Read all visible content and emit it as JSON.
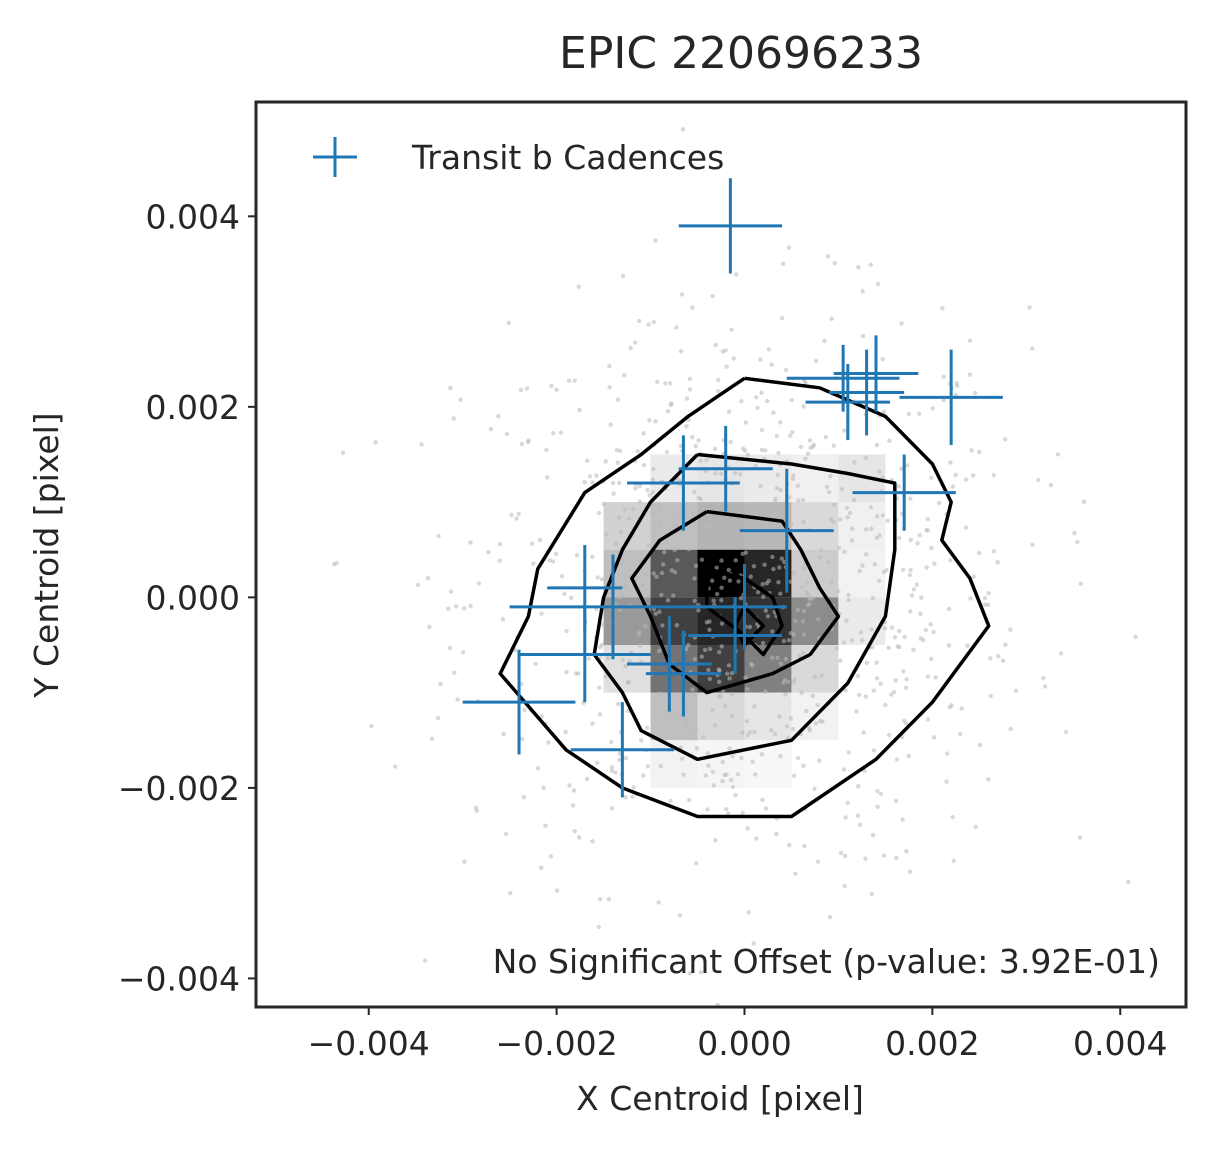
{
  "chart_data": {
    "type": "scatter",
    "title": "EPIC 220696233",
    "xlabel": "X Centroid [pixel]",
    "ylabel": "Y Centroid [pixel]",
    "xlim": [
      -0.0052,
      0.0047
    ],
    "ylim": [
      -0.0043,
      0.0052
    ],
    "xticks": [
      -0.004,
      -0.002,
      0.0,
      0.002,
      0.004
    ],
    "yticks": [
      -0.004,
      -0.002,
      0.0,
      0.002,
      0.004
    ],
    "xtick_labels": [
      "−0.004",
      "−0.002",
      "0.000",
      "0.002",
      "0.004"
    ],
    "ytick_labels": [
      "−0.004",
      "−0.002",
      "0.000",
      "0.002",
      "0.004"
    ],
    "grid": false,
    "legend_position": "top-left",
    "annotation": "No Significant Offset (p-value: 3.92E-01)",
    "colors": {
      "transit": "#1f77b4",
      "background_points": "#b8b8b8",
      "contour": "#000000",
      "axes": "#262626"
    },
    "series": [
      {
        "name": "Transit b Cadences",
        "marker": "errorbar-cross",
        "points": [
          {
            "x": -0.00015,
            "y": 0.0039,
            "xerr": 0.00055,
            "yerr": 0.0005
          },
          {
            "x": 0.00105,
            "y": 0.0023,
            "xerr": 0.0006,
            "yerr": 0.00035
          },
          {
            "x": 0.0014,
            "y": 0.00235,
            "xerr": 0.00045,
            "yerr": 0.0004
          },
          {
            "x": 0.0011,
            "y": 0.00205,
            "xerr": 0.00045,
            "yerr": 0.0004
          },
          {
            "x": 0.0013,
            "y": 0.00215,
            "xerr": 0.0004,
            "yerr": 0.00045
          },
          {
            "x": 0.0022,
            "y": 0.0021,
            "xerr": 0.00055,
            "yerr": 0.0005
          },
          {
            "x": -0.00065,
            "y": 0.0012,
            "xerr": 0.0006,
            "yerr": 0.0005
          },
          {
            "x": -0.0002,
            "y": 0.00135,
            "xerr": 0.0005,
            "yerr": 0.00045
          },
          {
            "x": 0.0017,
            "y": 0.0011,
            "xerr": 0.00055,
            "yerr": 0.0004
          },
          {
            "x": 0.00045,
            "y": 0.0007,
            "xerr": 0.0005,
            "yerr": 0.00065
          },
          {
            "x": -0.0017,
            "y": 0.0001,
            "xerr": 0.0004,
            "yerr": 0.00045
          },
          {
            "x": -0.0014,
            "y": -0.0001,
            "xerr": 0.0011,
            "yerr": 0.00055
          },
          {
            "x": 0.0,
            "y": -0.0001,
            "xerr": 0.00045,
            "yerr": 0.00045
          },
          {
            "x": -0.0017,
            "y": -0.0006,
            "xerr": 0.0007,
            "yerr": 0.0005
          },
          {
            "x": -0.0008,
            "y": -0.0007,
            "xerr": 0.00045,
            "yerr": 0.0005
          },
          {
            "x": -0.0001,
            "y": -0.0004,
            "xerr": 0.0005,
            "yerr": 0.0004
          },
          {
            "x": -0.00065,
            "y": -0.0008,
            "xerr": 0.0004,
            "yerr": 0.00045
          },
          {
            "x": -0.0024,
            "y": -0.0011,
            "xerr": 0.0006,
            "yerr": 0.00055
          },
          {
            "x": -0.0013,
            "y": -0.0016,
            "xerr": 0.00055,
            "yerr": 0.0005
          }
        ]
      }
    ],
    "contours": [
      {
        "level": "outer",
        "points": [
          [
            0.0,
            0.0023
          ],
          [
            0.0008,
            0.0022
          ],
          [
            0.0015,
            0.0019
          ],
          [
            0.002,
            0.0014
          ],
          [
            0.0022,
            0.001
          ],
          [
            0.0021,
            0.0006
          ],
          [
            0.0024,
            0.0002
          ],
          [
            0.0026,
            -0.0003
          ],
          [
            0.002,
            -0.0011
          ],
          [
            0.0014,
            -0.0017
          ],
          [
            0.0005,
            -0.0023
          ],
          [
            0.0,
            -0.0023
          ],
          [
            -0.0005,
            -0.0023
          ],
          [
            -0.0013,
            -0.002
          ],
          [
            -0.0019,
            -0.0016
          ],
          [
            -0.0026,
            -0.0008
          ],
          [
            -0.0023,
            -0.0002
          ],
          [
            -0.0022,
            0.0003
          ],
          [
            -0.0017,
            0.0011
          ],
          [
            -0.0011,
            0.0015
          ],
          [
            -0.0006,
            0.0019
          ],
          [
            -0.0003,
            0.0021
          ],
          [
            0.0,
            0.0023
          ]
        ]
      },
      {
        "level": "middle",
        "points": [
          [
            -0.0005,
            0.0015
          ],
          [
            0.0005,
            0.0014
          ],
          [
            0.0011,
            0.0013
          ],
          [
            0.0016,
            0.0012
          ],
          [
            0.0016,
            0.0005
          ],
          [
            0.0015,
            -0.0002
          ],
          [
            0.0011,
            -0.0009
          ],
          [
            0.0005,
            -0.0015
          ],
          [
            -0.0005,
            -0.0017
          ],
          [
            -0.0011,
            -0.0014
          ],
          [
            -0.0013,
            -0.001
          ],
          [
            -0.0016,
            -0.0006
          ],
          [
            -0.0015,
            0.0
          ],
          [
            -0.0013,
            0.0005
          ],
          [
            -0.001,
            0.001
          ],
          [
            -0.0005,
            0.0015
          ]
        ]
      },
      {
        "level": "inner",
        "points": [
          [
            -0.0004,
            0.0009
          ],
          [
            0.0004,
            0.0008
          ],
          [
            0.0006,
            0.0005
          ],
          [
            0.0008,
            0.0001
          ],
          [
            0.001,
            -0.0002
          ],
          [
            0.0007,
            -0.0006
          ],
          [
            0.0003,
            -0.0008
          ],
          [
            -0.0004,
            -0.001
          ],
          [
            -0.0008,
            -0.0007
          ],
          [
            -0.001,
            -0.0002
          ],
          [
            -0.0012,
            0.0002
          ],
          [
            -0.0009,
            0.0006
          ],
          [
            -0.0004,
            0.0009
          ]
        ]
      },
      {
        "level": "core",
        "points": [
          [
            -0.0004,
            0.0003
          ],
          [
            0.0,
            0.0002
          ],
          [
            0.0003,
            0.0
          ],
          [
            0.0004,
            -0.0003
          ],
          [
            0.0002,
            -0.0006
          ],
          [
            0.0,
            -0.0004
          ],
          [
            -0.0004,
            -0.0001
          ],
          [
            -0.0004,
            0.0003
          ]
        ]
      },
      {
        "level": "peak",
        "points": [
          [
            0.0,
            -0.0001
          ],
          [
            0.0002,
            -0.0003
          ],
          [
            0.0,
            -0.0005
          ],
          [
            -0.0001,
            -0.0003
          ],
          [
            0.0,
            -0.0001
          ]
        ]
      }
    ],
    "density_cells": [
      {
        "x": -0.00075,
        "y": 0.00125,
        "v": 0.08
      },
      {
        "x": -0.00025,
        "y": 0.00125,
        "v": 0.1
      },
      {
        "x": 0.00025,
        "y": 0.00125,
        "v": 0.08
      },
      {
        "x": 0.00075,
        "y": 0.00125,
        "v": 0.06
      },
      {
        "x": 0.00125,
        "y": 0.00125,
        "v": 0.1
      },
      {
        "x": -0.00125,
        "y": 0.00075,
        "v": 0.18
      },
      {
        "x": -0.00075,
        "y": 0.00075,
        "v": 0.25
      },
      {
        "x": -0.00025,
        "y": 0.00075,
        "v": 0.3
      },
      {
        "x": 0.00025,
        "y": 0.00075,
        "v": 0.28
      },
      {
        "x": 0.00075,
        "y": 0.00075,
        "v": 0.15
      },
      {
        "x": 0.00125,
        "y": 0.00075,
        "v": 0.06
      },
      {
        "x": -0.00125,
        "y": 0.00025,
        "v": 0.25
      },
      {
        "x": -0.00075,
        "y": 0.00025,
        "v": 0.65
      },
      {
        "x": -0.00025,
        "y": 0.00025,
        "v": 1.0
      },
      {
        "x": 0.00025,
        "y": 0.00025,
        "v": 0.85
      },
      {
        "x": 0.00075,
        "y": 0.00025,
        "v": 0.2
      },
      {
        "x": 0.00125,
        "y": 0.00025,
        "v": 0.05
      },
      {
        "x": -0.00125,
        "y": -0.00025,
        "v": 0.4
      },
      {
        "x": -0.00075,
        "y": -0.00025,
        "v": 0.75
      },
      {
        "x": -0.00025,
        "y": -0.00025,
        "v": 0.85
      },
      {
        "x": 0.00025,
        "y": -0.00025,
        "v": 0.8
      },
      {
        "x": 0.00075,
        "y": -0.00025,
        "v": 0.45
      },
      {
        "x": 0.00125,
        "y": -0.00025,
        "v": 0.08
      },
      {
        "x": -0.00125,
        "y": -0.00075,
        "v": 0.12
      },
      {
        "x": -0.00075,
        "y": -0.00075,
        "v": 0.55
      },
      {
        "x": -0.00025,
        "y": -0.00075,
        "v": 0.75
      },
      {
        "x": 0.00025,
        "y": -0.00075,
        "v": 0.5
      },
      {
        "x": 0.00075,
        "y": -0.00075,
        "v": 0.15
      },
      {
        "x": -0.00075,
        "y": -0.00125,
        "v": 0.25
      },
      {
        "x": -0.00025,
        "y": -0.00125,
        "v": 0.15
      },
      {
        "x": 0.00025,
        "y": -0.00125,
        "v": 0.1
      },
      {
        "x": 0.00075,
        "y": -0.00125,
        "v": 0.05
      },
      {
        "x": -0.00075,
        "y": -0.00175,
        "v": 0.05
      },
      {
        "x": -0.00025,
        "y": -0.00175,
        "v": 0.04
      },
      {
        "x": 0.00025,
        "y": -0.00175,
        "v": 0.03
      }
    ]
  }
}
